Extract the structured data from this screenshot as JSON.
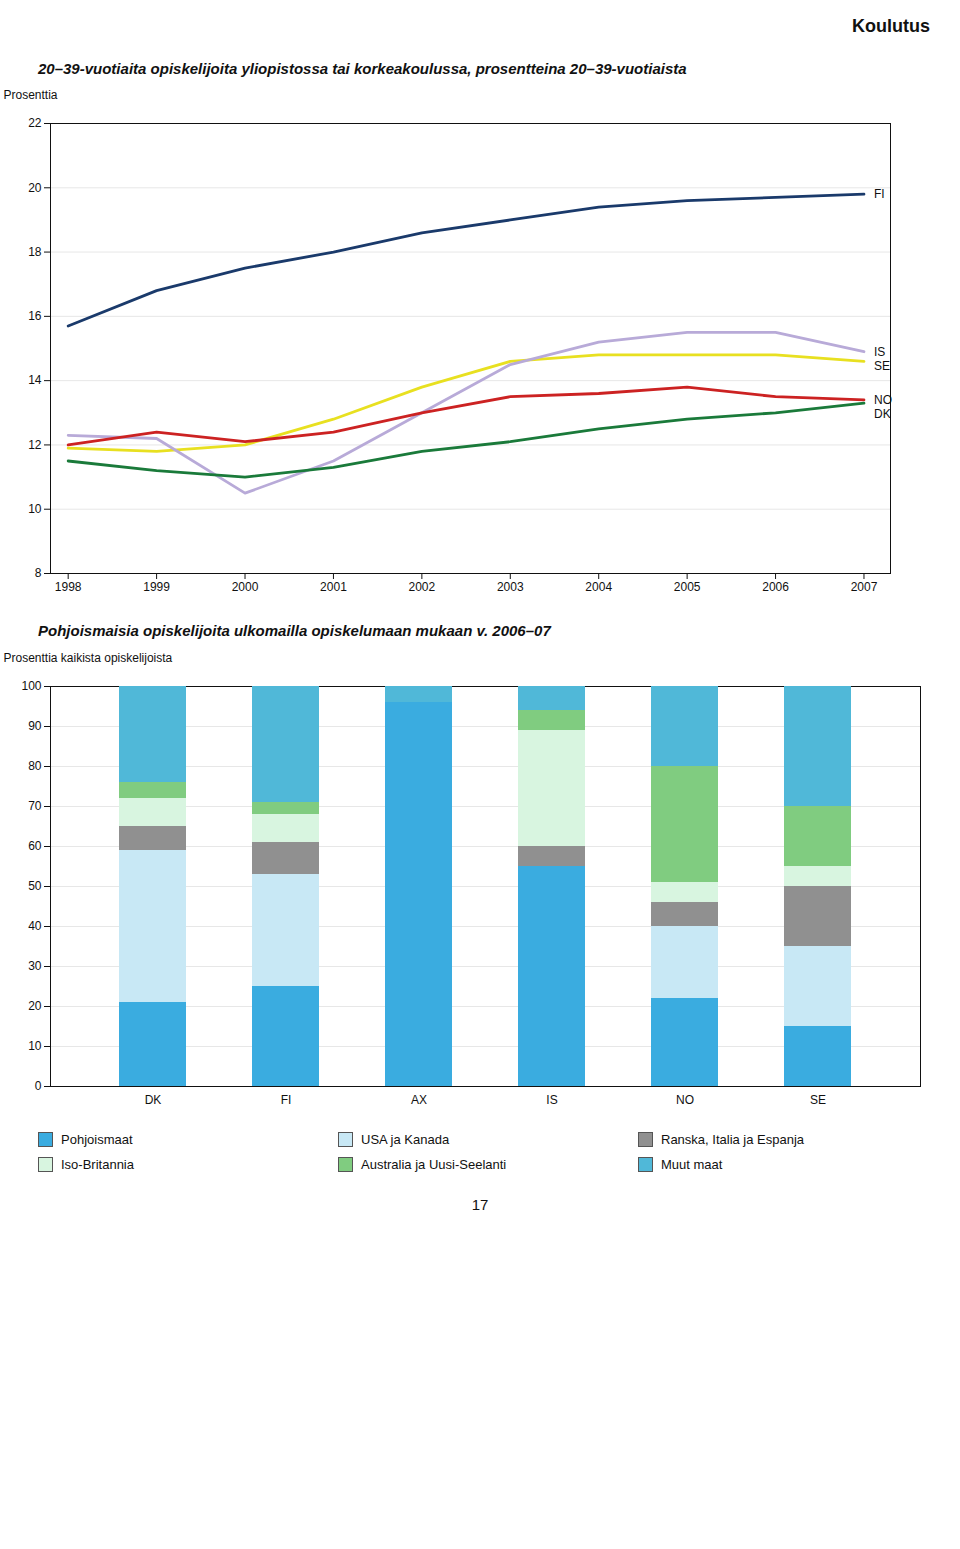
{
  "title": "Koulutus",
  "annotations": [
    "17"
  ],
  "chart_data": [
    {
      "type": "line",
      "title": "20–39-vuotiaita opiskelijoita yliopistossa tai korkeakoulussa, prosentteina 20–39-vuotiaista",
      "ylabel": "Prosenttia",
      "x": [
        1998,
        1999,
        2000,
        2001,
        2002,
        2003,
        2004,
        2005,
        2006,
        2007
      ],
      "xlim": [
        1997.8,
        2007.3
      ],
      "xticks": [
        1998,
        1999,
        2000,
        2001,
        2002,
        2003,
        2004,
        2005,
        2006,
        2007
      ],
      "ylim": [
        8,
        22
      ],
      "yticks": [
        8,
        10,
        12,
        14,
        16,
        18,
        20,
        22
      ],
      "grid": true,
      "series": [
        {
          "name": "FI",
          "color": "#1a3a6b",
          "values": [
            15.7,
            16.8,
            17.5,
            18.0,
            18.6,
            19.0,
            19.4,
            19.6,
            19.7,
            19.8
          ]
        },
        {
          "name": "SE",
          "color": "#e8e020",
          "values": [
            11.9,
            11.8,
            12.0,
            12.8,
            13.8,
            14.6,
            14.8,
            14.8,
            14.8,
            14.6
          ]
        },
        {
          "name": "IS",
          "color": "#b8aad8",
          "values": [
            12.3,
            12.2,
            10.5,
            11.5,
            13.0,
            14.5,
            15.2,
            15.5,
            15.5,
            14.9
          ]
        },
        {
          "name": "NO",
          "color": "#cc2222",
          "values": [
            12.0,
            12.4,
            12.1,
            12.4,
            13.0,
            13.5,
            13.6,
            13.8,
            13.5,
            13.4
          ]
        },
        {
          "name": "DK",
          "color": "#1a7a3a",
          "values": [
            11.5,
            11.2,
            11.0,
            11.3,
            11.8,
            12.1,
            12.5,
            12.8,
            13.0,
            13.3
          ]
        }
      ]
    },
    {
      "type": "bar",
      "stacked": true,
      "title": "Pohjoismaisia opiskelijoita ulkomailla opiskelumaan mukaan v. 2006–07",
      "ylabel": "Prosenttia kaikista opiskelijoista",
      "categories": [
        "DK",
        "FI",
        "AX",
        "IS",
        "NO",
        "SE"
      ],
      "ylim": [
        0,
        100
      ],
      "yticks": [
        0,
        10,
        20,
        30,
        40,
        50,
        60,
        70,
        80,
        90,
        100
      ],
      "grid": true,
      "legend": "bottom",
      "series": [
        {
          "name": "Pohjoismaat",
          "color": "#3aace0",
          "values": [
            21,
            25,
            96,
            55,
            22,
            15
          ]
        },
        {
          "name": "USA ja Kanada",
          "color": "#c8e8f5",
          "values": [
            38,
            28,
            0,
            0,
            18,
            20
          ]
        },
        {
          "name": "Ranska, Italia ja Espanja",
          "color": "#909090",
          "values": [
            6,
            8,
            0,
            5,
            6,
            15
          ]
        },
        {
          "name": "Iso-Britannia",
          "color": "#d8f5e0",
          "values": [
            7,
            7,
            0,
            29,
            5,
            5
          ]
        },
        {
          "name": "Australia ja Uusi-Seelanti",
          "color": "#80cc80",
          "values": [
            4,
            3,
            0,
            5,
            29,
            15
          ]
        },
        {
          "name": "Muut maat",
          "color": "#50b8d8",
          "values": [
            24,
            29,
            4,
            6,
            20,
            30
          ]
        }
      ]
    }
  ]
}
